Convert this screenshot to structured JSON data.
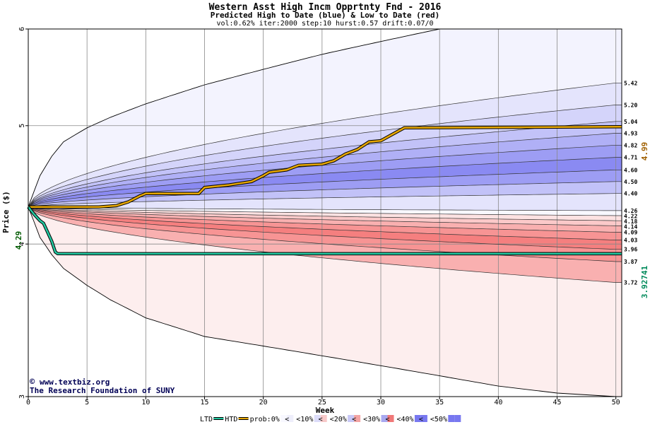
{
  "header": {
    "title": "Western Asst High Incm Opprtnty Fnd - 2016",
    "subtitle": "Predicted High to Date (blue) &  Low to Date (red)",
    "params": "vol:0.62% iter:2000 step:10 hurst:0.57 drift:0.07/0"
  },
  "credits": {
    "url": "www.textbiz.org",
    "org": "The Research Foundation of SUNY"
  },
  "chart_data": {
    "type": "area",
    "xlabel": "Week",
    "ylabel": "Price ($)",
    "xlim": [
      0,
      50.5
    ],
    "ylim": [
      3,
      6
    ],
    "y_scale": "log",
    "x_ticks": [
      0,
      5,
      10,
      15,
      20,
      25,
      30,
      35,
      40,
      45,
      50
    ],
    "y_ticks": [
      3,
      4,
      5,
      6
    ],
    "start_price": "4.29",
    "final_high": "4.99",
    "final_low": "3.92741",
    "grid": true,
    "colors": {
      "high_band": "#7878f0",
      "low_band": "#f07878",
      "htd_line": "#e8a800",
      "ltd_line": "#22c8a0",
      "high_label": "#a06000",
      "low_label": "#008a5a",
      "credit": "#000055"
    },
    "outer_envelope": {
      "x": [
        0,
        1,
        2,
        3,
        5,
        7,
        10,
        15,
        20,
        25,
        30,
        35,
        40,
        45,
        50
      ],
      "upper": [
        4.29,
        4.55,
        4.72,
        4.85,
        4.98,
        5.08,
        5.21,
        5.4,
        5.56,
        5.72,
        5.86,
        6.0,
        6.0,
        6.0,
        6.0
      ],
      "lower": [
        4.29,
        4.05,
        3.92,
        3.82,
        3.7,
        3.6,
        3.48,
        3.36,
        3.3,
        3.24,
        3.18,
        3.12,
        3.06,
        3.02,
        3.0
      ]
    },
    "percentile_levels_high": [
      "5.42",
      "5.20",
      "5.04",
      "4.93",
      "4.82",
      "4.71",
      "4.60",
      "4.50",
      "4.40",
      "4.26"
    ],
    "percentile_levels_low": [
      "4.22",
      "4.18",
      "4.14",
      "4.09",
      "4.03",
      "3.96",
      "3.87",
      "3.72"
    ],
    "series": [
      {
        "name": "HTD",
        "x": [
          0,
          3,
          4.5,
          6,
          7.5,
          8.5,
          9.5,
          10,
          14.5,
          15,
          17,
          19,
          20,
          20.5,
          22,
          23,
          25,
          26,
          27,
          28,
          29,
          30,
          31,
          32,
          50.5
        ],
        "values": [
          4.29,
          4.29,
          4.29,
          4.29,
          4.3,
          4.33,
          4.38,
          4.4,
          4.4,
          4.45,
          4.47,
          4.5,
          4.55,
          4.58,
          4.6,
          4.64,
          4.65,
          4.68,
          4.74,
          4.78,
          4.85,
          4.86,
          4.92,
          4.98,
          4.99
        ]
      },
      {
        "name": "LTD",
        "x": [
          0,
          0.5,
          1,
          1.3,
          1.6,
          2,
          2.3,
          2.5,
          10,
          20,
          30,
          40,
          50.5
        ],
        "values": [
          4.29,
          4.23,
          4.18,
          4.16,
          4.1,
          4.02,
          3.94,
          3.928,
          3.9275,
          3.9275,
          3.9274,
          3.9274,
          3.92741
        ]
      }
    ],
    "legend": [
      "LTD",
      "HTD",
      "prob:0%",
      "<10%",
      "<20%",
      "<30%",
      "<40%",
      "<50%"
    ],
    "legend_suffix": "<"
  }
}
